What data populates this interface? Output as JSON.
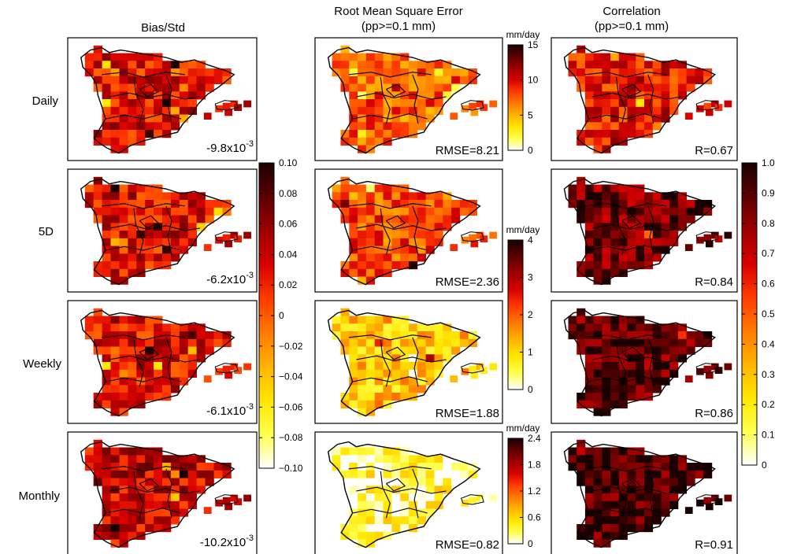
{
  "columns": [
    {
      "title": "Bias/Std",
      "subtitle": ""
    },
    {
      "title": "Root Mean Square Error",
      "subtitle": "(pp>=0.1 mm)"
    },
    {
      "title": "Correlation",
      "subtitle": "(pp>=0.1 mm)"
    }
  ],
  "rows": [
    "Daily",
    "5D",
    "Weekly",
    "Monthly"
  ],
  "chart_data": [
    {
      "type": "heatmap",
      "title": "Bias/Std",
      "panel_labels": [
        {
          "mantissa": "-9.8x10",
          "exponent": "-3"
        },
        {
          "mantissa": "-6.2x10",
          "exponent": "-3"
        },
        {
          "mantissa": "-6.1x10",
          "exponent": "-3"
        },
        {
          "mantissa": "-10.2x10",
          "exponent": "-3"
        }
      ],
      "dominant_value": [
        0.03,
        0.03,
        0.03,
        0.04
      ],
      "colorbar": {
        "range": [
          -0.1,
          0.1
        ],
        "ticks": [
          0.1,
          0.08,
          0.06,
          0.04,
          0.02,
          0,
          -0.02,
          -0.04,
          -0.06,
          -0.08,
          -0.1
        ],
        "tick_labels": [
          "0.10",
          "0.08",
          "0.06",
          "0.04",
          "0.02",
          "0",
          "−0.02",
          "−0.04",
          "−0.06",
          "−0.08",
          "−0.10"
        ]
      }
    },
    {
      "type": "heatmap",
      "title": "Root Mean Square Error",
      "subtitle": "(pp>=0.1 mm)",
      "panel_labels": [
        "RMSE=8.21",
        "RMSE=2.36",
        "RMSE=1.88",
        "RMSE=0.82"
      ],
      "dominant_value": [
        7.5,
        2.1,
        1.2,
        0.3
      ],
      "colorbars": [
        {
          "unit": "mm/day",
          "range": [
            0,
            15
          ],
          "ticks": [
            15,
            10,
            5,
            0
          ],
          "tick_labels": [
            "15",
            "10",
            "5",
            "0"
          ]
        },
        {
          "unit": "mm/day",
          "range": [
            0,
            4
          ],
          "ticks": [
            4,
            3,
            2,
            1,
            0
          ],
          "tick_labels": [
            "4",
            "3",
            "2",
            "1",
            "0"
          ]
        },
        {
          "unit": "mm/day",
          "range": [
            0,
            2.4
          ],
          "ticks": [
            2.4,
            1.8,
            1.2,
            0.6,
            0
          ],
          "tick_labels": [
            "2.4",
            "1.8",
            "1.2",
            "0.6",
            "0"
          ]
        }
      ]
    },
    {
      "type": "heatmap",
      "title": "Correlation",
      "subtitle": "(pp>=0.1 mm)",
      "panel_labels": [
        "R=0.67",
        "R=0.84",
        "R=0.86",
        "R=0.91"
      ],
      "dominant_value": [
        0.63,
        0.84,
        0.87,
        0.93
      ],
      "colorbar": {
        "range": [
          0,
          1
        ],
        "ticks": [
          1,
          0.9,
          0.8,
          0.7,
          0.6,
          0.5,
          0.4,
          0.3,
          0.2,
          0.1,
          0
        ],
        "tick_labels": [
          "1.0",
          "0.9",
          "0.8",
          "0.7",
          "0.6",
          "0.5",
          "0.4",
          "0.3",
          "0.2",
          "0.1",
          "0"
        ]
      }
    }
  ],
  "colors": {
    "colormap": [
      "#ffffff",
      "#ffff4d",
      "#ffe600",
      "#ffb300",
      "#ff7a00",
      "#ff3b00",
      "#d80000",
      "#9e0000",
      "#5c0000",
      "#1a0000"
    ],
    "border": "#000000"
  }
}
